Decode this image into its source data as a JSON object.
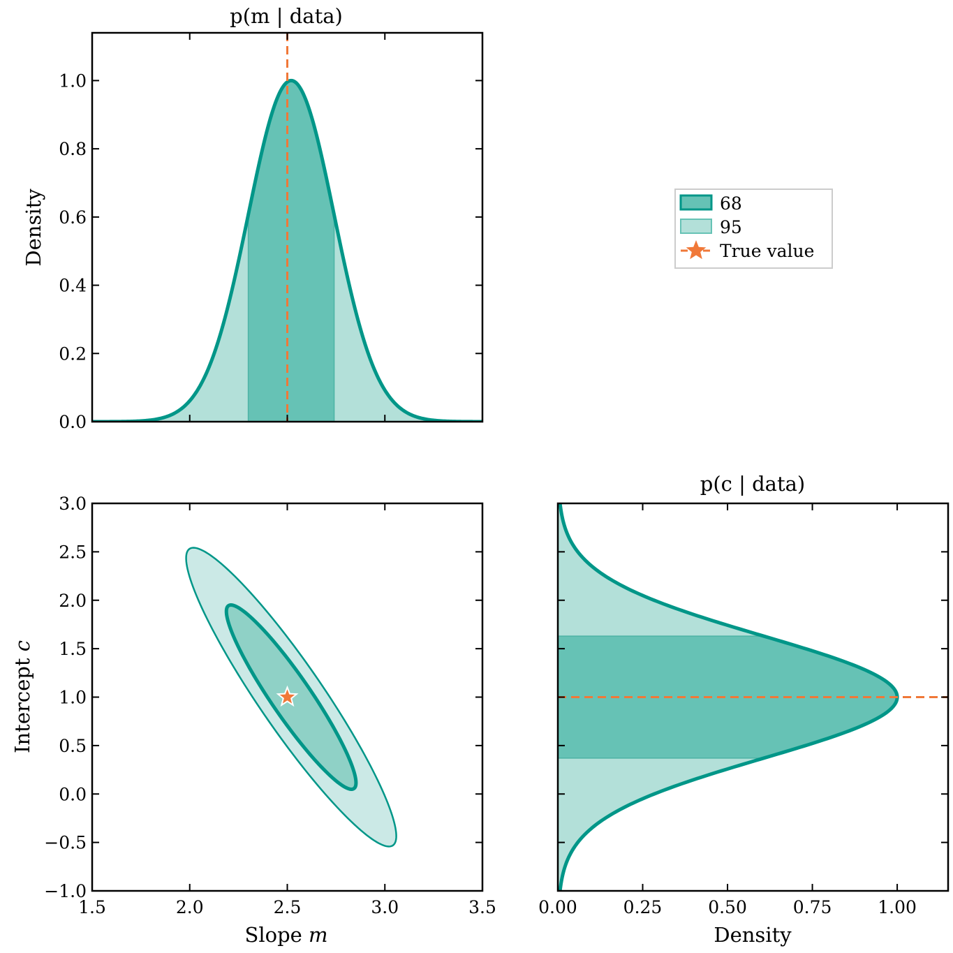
{
  "chart_data": [
    {
      "panel": "top-left",
      "type": "area",
      "title": "p(m | data)",
      "xlabel": "",
      "ylabel": "Density",
      "xlim": [
        1.5,
        3.5
      ],
      "ylim": [
        0.0,
        1.14
      ],
      "yticks": [
        "0.0",
        "0.2",
        "0.4",
        "0.6",
        "0.8",
        "1.0"
      ],
      "curve": {
        "type": "gaussian",
        "mean": 2.52,
        "sigma": 0.22,
        "peak": 1.0
      },
      "interval_68": [
        2.3,
        2.74
      ],
      "true_value": 2.5
    },
    {
      "panel": "bottom-left",
      "type": "contour",
      "title": "",
      "xlabel": "Slope m",
      "ylabel": "Intercept c",
      "xlim": [
        1.5,
        3.5
      ],
      "ylim": [
        -1.0,
        3.0
      ],
      "xticks": [
        "1.5",
        "2.0",
        "2.5",
        "3.0",
        "3.5"
      ],
      "yticks": [
        "−1.0",
        "−0.5",
        "0.0",
        "0.5",
        "1.0",
        "1.5",
        "2.0",
        "2.5",
        "3.0"
      ],
      "center": [
        2.52,
        1.0
      ],
      "sigma_m": 0.22,
      "sigma_c": 0.63,
      "correlation": -0.93,
      "levels": [
        68,
        95
      ],
      "true_value": [
        2.5,
        1.0
      ]
    },
    {
      "panel": "bottom-right",
      "type": "area",
      "title": "p(c | data)",
      "xlabel": "Density",
      "ylabel": "",
      "xlim": [
        0.0,
        1.15
      ],
      "ylim": [
        -1.0,
        3.0
      ],
      "xticks": [
        "0.00",
        "0.25",
        "0.50",
        "0.75",
        "1.00"
      ],
      "curve": {
        "type": "gaussian",
        "mean": 1.0,
        "sigma": 0.63,
        "peak": 1.0
      },
      "interval_68": [
        0.37,
        1.63
      ],
      "true_value": 1.0
    }
  ],
  "legend": {
    "placement": "upper-right empty panel",
    "entries": [
      {
        "label": "68",
        "kind": "band68"
      },
      {
        "label": "95",
        "kind": "band95"
      },
      {
        "label": "True value",
        "kind": "truth"
      }
    ]
  },
  "colors": {
    "line": "#009688",
    "band68": "#66c2b5",
    "band95": "#b3e0d9",
    "contour68_fill": "#8fd1c6",
    "contour95_fill": "#cbe9e6",
    "truth": "#f07838"
  }
}
